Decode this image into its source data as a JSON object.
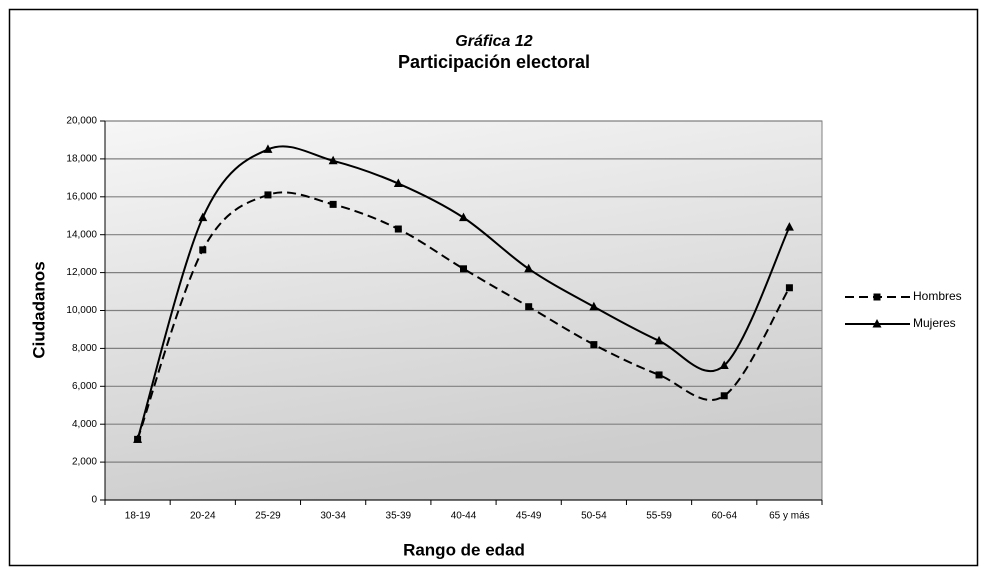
{
  "chart_data": {
    "type": "line",
    "subtitle": "Gráfica 12",
    "title": "Participación electoral",
    "y_label": "Ciudadanos",
    "x_label": "Rango de edad",
    "categories": [
      "18-19",
      "20-24",
      "25-29",
      "30-34",
      "35-39",
      "40-44",
      "45-49",
      "50-54",
      "55-59",
      "60-64",
      "65 y más"
    ],
    "series": [
      {
        "name": "Hombres",
        "color": "#000000",
        "dash": true,
        "marker": "square",
        "values": [
          3200,
          13200,
          16100,
          15600,
          14300,
          12200,
          10200,
          8200,
          6600,
          5500,
          11200
        ]
      },
      {
        "name": "Mujeres",
        "color": "#000000",
        "dash": false,
        "marker": "triangle",
        "values": [
          3200,
          14900,
          18500,
          17900,
          16700,
          14900,
          12200,
          10200,
          8400,
          7100,
          14400
        ]
      }
    ],
    "ylim": [
      0,
      20000
    ],
    "yticks": [
      0,
      {
        "value": 2000,
        "label": "2,000"
      },
      {
        "value": 4000,
        "label": "4,000"
      },
      {
        "value": 6000,
        "label": "6,000"
      },
      {
        "value": 8000,
        "label": "8,000"
      },
      {
        "value": 10000,
        "label": "10,000"
      },
      {
        "value": 12000,
        "label": "12,000"
      },
      {
        "value": 14000,
        "label": "14,000"
      },
      {
        "value": 16000,
        "label": "16,000"
      },
      {
        "value": 18000,
        "label": "18,000"
      },
      {
        "value": 20000,
        "label": "20,000"
      }
    ],
    "grid": true,
    "smooth": true,
    "legend": "right"
  }
}
